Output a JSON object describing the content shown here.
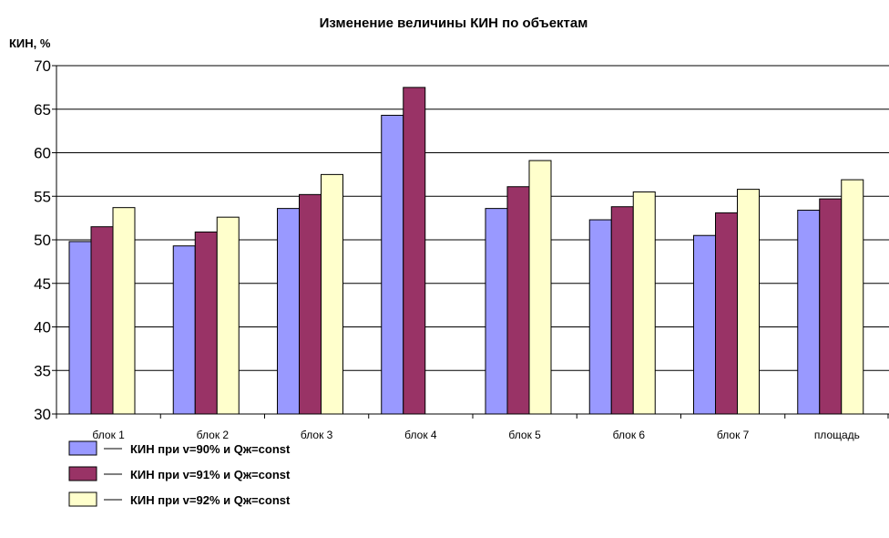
{
  "chart_data": {
    "type": "bar",
    "title": "Изменение величины КИН по объектам",
    "ylabel": "КИН, %",
    "xlabel": "",
    "ylim": [
      30,
      70
    ],
    "ytick_step": 5,
    "grid": true,
    "legend_position": "bottom-left",
    "categories": [
      "блок 1",
      "блок 2",
      "блок 3",
      "блок 4",
      "блок 5",
      "блок 6",
      "блок 7",
      "площадь"
    ],
    "series": [
      {
        "name": "КИН при v=90% и Qж=const",
        "color": "#9999ff",
        "values": [
          49.8,
          49.3,
          53.6,
          64.3,
          53.6,
          52.3,
          50.5,
          53.4
        ]
      },
      {
        "name": "КИН при v=91% и Qж=const",
        "color": "#993366",
        "values": [
          51.5,
          50.9,
          55.2,
          67.5,
          56.1,
          53.8,
          53.1,
          54.7
        ]
      },
      {
        "name": "КИН при v=92% и Qж=const",
        "color": "#ffffcc",
        "values": [
          53.7,
          52.6,
          57.5,
          null,
          59.1,
          55.5,
          55.8,
          56.9
        ]
      }
    ]
  }
}
